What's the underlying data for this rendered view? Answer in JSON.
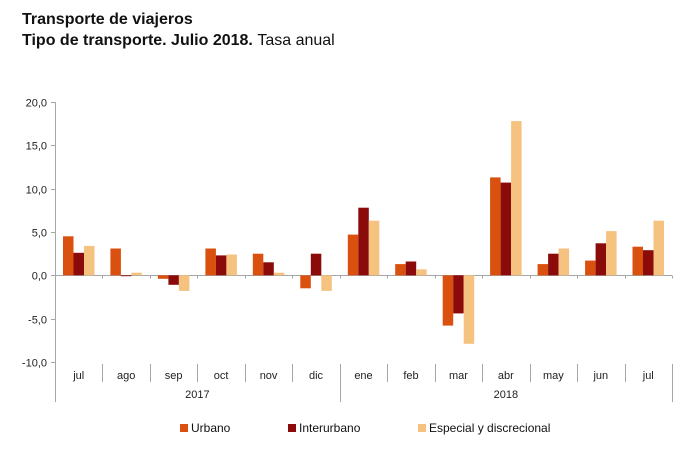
{
  "header": {
    "title_line1": "Transporte de viajeros",
    "title_line2_bold": "Tipo de transporte. Julio 2018.",
    "title_line2_normal": "Tasa anual"
  },
  "chart_data": {
    "type": "bar",
    "title": "Transporte de viajeros — Tipo de transporte. Julio 2018. Tasa anual",
    "xlabel": "",
    "ylabel": "",
    "ylim": [
      -10,
      20
    ],
    "yticks": [
      -10,
      -5,
      0,
      5,
      10,
      15,
      20
    ],
    "ytick_labels": [
      "-10,0",
      "-5,0",
      "0,0",
      "5,0",
      "10,0",
      "15,0",
      "20,0"
    ],
    "grid": false,
    "legend_position": "bottom",
    "categories": [
      "jul",
      "ago",
      "sep",
      "oct",
      "nov",
      "dic",
      "ene",
      "feb",
      "mar",
      "abr",
      "may",
      "jun",
      "jul"
    ],
    "year_groups": [
      {
        "label": "2017",
        "count": 6
      },
      {
        "label": "2018",
        "count": 7
      }
    ],
    "series": [
      {
        "name": "Urbano",
        "color": "#d9500f",
        "values": [
          4.5,
          3.1,
          -0.4,
          3.1,
          2.5,
          -1.5,
          4.7,
          1.3,
          -5.8,
          11.3,
          1.3,
          1.7,
          3.3
        ]
      },
      {
        "name": "Interurbano",
        "color": "#8b0a0a",
        "values": [
          2.6,
          -0.1,
          -1.1,
          2.3,
          1.5,
          2.5,
          7.8,
          1.6,
          -4.4,
          10.7,
          2.5,
          3.7,
          2.9
        ]
      },
      {
        "name": "Especial y discrecional",
        "color": "#f5c27f",
        "values": [
          3.4,
          0.3,
          -1.8,
          2.4,
          0.3,
          -1.8,
          6.3,
          0.7,
          -7.9,
          17.8,
          3.1,
          5.1,
          6.3
        ]
      }
    ]
  }
}
